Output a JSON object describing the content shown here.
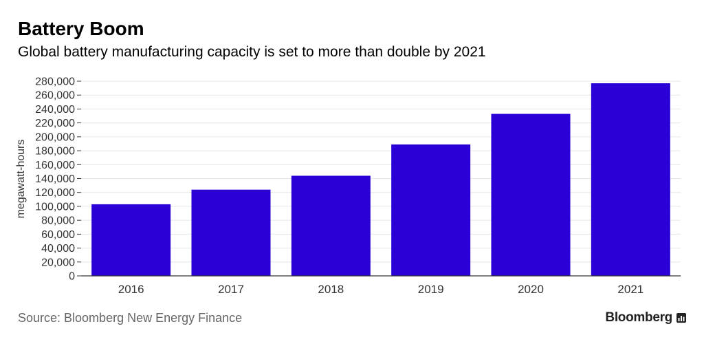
{
  "header": {
    "title": "Battery Boom",
    "subtitle": "Global battery manufacturing capacity is set to more than double by 2021"
  },
  "footer": {
    "source": "Source: Bloomberg New Energy Finance",
    "brand": "Bloomberg",
    "brand_icon": "bar-chart-icon"
  },
  "colors": {
    "bar": "#2a00d6",
    "grid": "#e6e6e6",
    "axis": "#333333",
    "tick_text": "#333333"
  },
  "chart_data": {
    "type": "bar",
    "categories": [
      "2016",
      "2017",
      "2018",
      "2019",
      "2020",
      "2021"
    ],
    "values": [
      103000,
      124000,
      144000,
      189000,
      233000,
      277000
    ],
    "ylabel": "megawatt-hours",
    "xlabel": "",
    "ylim": [
      0,
      280000
    ],
    "yticks": [
      0,
      20000,
      40000,
      60000,
      80000,
      100000,
      120000,
      140000,
      160000,
      180000,
      200000,
      220000,
      240000,
      260000,
      280000
    ],
    "ytick_labels": [
      "0",
      "20,000",
      "40,000",
      "60,000",
      "80,000",
      "100,000",
      "120,000",
      "140,000",
      "160,000",
      "180,000",
      "200,000",
      "220,000",
      "240,000",
      "260,000",
      "280,000"
    ],
    "grid": true,
    "legend": "none"
  }
}
